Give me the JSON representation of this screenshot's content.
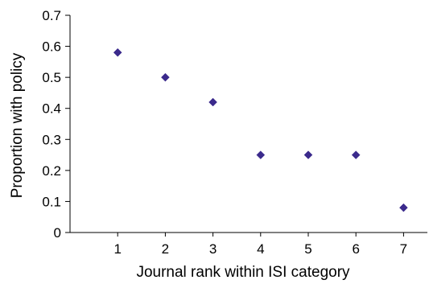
{
  "chart_data": {
    "type": "scatter",
    "title": "",
    "xlabel": "Journal rank within ISI category",
    "ylabel": "Proportion with policy",
    "x_ticks": [
      "1",
      "2",
      "3",
      "4",
      "5",
      "6",
      "7"
    ],
    "y_ticks": [
      "0",
      "0.1",
      "0.2",
      "0.3",
      "0.4",
      "0.5",
      "0.6",
      "0.7"
    ],
    "xlim": [
      0,
      7.5
    ],
    "ylim": [
      0,
      0.7
    ],
    "grid": false,
    "legend": "none",
    "marker": "diamond",
    "marker_color": "#3b2a8c",
    "series": [
      {
        "x": [
          1,
          2,
          3,
          4,
          5,
          6,
          7
        ],
        "y": [
          0.58,
          0.5,
          0.42,
          0.25,
          0.25,
          0.25,
          0.08
        ]
      }
    ]
  }
}
